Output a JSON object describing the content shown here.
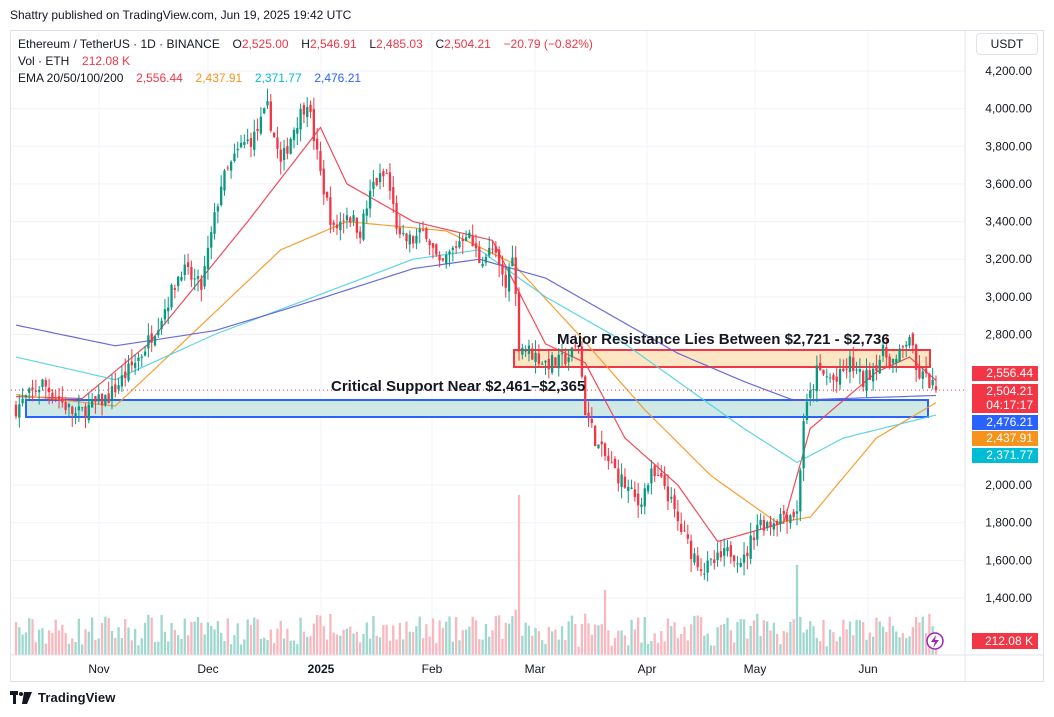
{
  "header": {
    "publisher": "Shattry published on TradingView.com, Jun 19, 2025 19:42 UTC"
  },
  "legend": {
    "symbol": "Ethereum / TetherUS · 1D · BINANCE",
    "open_label": "O",
    "open": "2,525.00",
    "high_label": "H",
    "high": "2,546.91",
    "low_label": "L",
    "low": "2,485.03",
    "close_label": "C",
    "close": "2,504.21",
    "change": "−20.79 (−0.82%)",
    "vol_label": "Vol · ETH",
    "vol_value": "212.08 K",
    "ema_label": "EMA 20/50/100/200",
    "ema20": "2,556.44",
    "ema50": "2,437.91",
    "ema100": "2,371.77",
    "ema200": "2,476.21"
  },
  "currency_button": "USDT",
  "footer": {
    "brand": "TradingView"
  },
  "colors": {
    "up": "#089981",
    "down": "#f23645",
    "ema20": "#f23645",
    "ema50": "#f7931a",
    "ema100": "#4dd0e1",
    "ema200": "#5b5bd6",
    "resistance_fill": "#fde6c4",
    "support_fill": "#cfe9e7"
  },
  "chart_data": {
    "type": "candlestick",
    "symbol": "ETH/USDT",
    "interval": "1D",
    "y_axis": {
      "ticks": [
        "4,200.00",
        "4,000.00",
        "3,800.00",
        "3,600.00",
        "3,400.00",
        "3,200.00",
        "3,000.00",
        "2,800.00",
        "2,000.00",
        "1,800.00",
        "1,600.00",
        "1,400.00"
      ],
      "tick_values": [
        4200,
        4000,
        3800,
        3600,
        3400,
        3200,
        3000,
        2800,
        2000,
        1800,
        1600,
        1400
      ],
      "ylim": [
        1230,
        4300
      ]
    },
    "x_axis": {
      "labels": [
        "Nov",
        "Dec",
        "2025",
        "Feb",
        "Mar",
        "Apr",
        "May",
        "Jun"
      ],
      "bold_label": "2025"
    },
    "price_tags": [
      {
        "text": "2,556.44",
        "value": 2556.44,
        "color": "#f23645"
      },
      {
        "text": "2,504.21",
        "sub": "04:17:17",
        "value": 2504.21,
        "color": "#f23645"
      },
      {
        "text": "2,476.21",
        "value": 2476.21,
        "color": "#2962ff"
      },
      {
        "text": "2,437.91",
        "value": 2437.91,
        "color": "#f7931a"
      },
      {
        "text": "2,371.77",
        "value": 2371.77,
        "color": "#00bcd4"
      }
    ],
    "volume_tag": "212.08 K",
    "annotations": [
      {
        "text": "Major Resistance Lies Between $2,721 - $2,736"
      },
      {
        "text": "Critical Support Near $2,461–$2,365"
      }
    ],
    "zones": {
      "resistance": {
        "low": 2721,
        "high": 2736
      },
      "support": {
        "low": 2365,
        "high": 2461
      }
    },
    "close_anchors": [
      [
        0,
        2410
      ],
      [
        8,
        2540
      ],
      [
        18,
        2370
      ],
      [
        28,
        2470
      ],
      [
        38,
        2700
      ],
      [
        44,
        2900
      ],
      [
        50,
        3150
      ],
      [
        56,
        3050
      ],
      [
        62,
        3600
      ],
      [
        68,
        3800
      ],
      [
        72,
        3850
      ],
      [
        76,
        4000
      ],
      [
        80,
        3700
      ],
      [
        84,
        3900
      ],
      [
        88,
        4050
      ],
      [
        92,
        3650
      ],
      [
        96,
        3350
      ],
      [
        100,
        3450
      ],
      [
        104,
        3350
      ],
      [
        108,
        3600
      ],
      [
        112,
        3650
      ],
      [
        116,
        3300
      ],
      [
        120,
        3300
      ],
      [
        124,
        3350
      ],
      [
        128,
        3150
      ],
      [
        132,
        3250
      ],
      [
        136,
        3350
      ],
      [
        140,
        3200
      ],
      [
        144,
        3250
      ],
      [
        148,
        3050
      ],
      [
        150,
        3250
      ],
      [
        152,
        2750
      ],
      [
        156,
        2700
      ],
      [
        160,
        2650
      ],
      [
        164,
        2650
      ],
      [
        168,
        2700
      ],
      [
        170,
        2750
      ],
      [
        172,
        2400
      ],
      [
        176,
        2200
      ],
      [
        180,
        2100
      ],
      [
        184,
        2000
      ],
      [
        188,
        1900
      ],
      [
        192,
        2050
      ],
      [
        196,
        2000
      ],
      [
        200,
        1800
      ],
      [
        204,
        1650
      ],
      [
        208,
        1550
      ],
      [
        212,
        1600
      ],
      [
        216,
        1650
      ],
      [
        220,
        1600
      ],
      [
        224,
        1800
      ],
      [
        228,
        1800
      ],
      [
        232,
        1850
      ],
      [
        236,
        1850
      ],
      [
        238,
        2350
      ],
      [
        242,
        2600
      ],
      [
        248,
        2550
      ],
      [
        252,
        2650
      ],
      [
        256,
        2550
      ],
      [
        262,
        2700
      ],
      [
        266,
        2650
      ],
      [
        270,
        2800
      ],
      [
        272,
        2600
      ],
      [
        276,
        2550
      ],
      [
        278,
        2504
      ]
    ],
    "ema_anchors": {
      "ema20": [
        [
          0,
          2470
        ],
        [
          20,
          2460
        ],
        [
          40,
          2750
        ],
        [
          70,
          3400
        ],
        [
          92,
          3900
        ],
        [
          100,
          3600
        ],
        [
          120,
          3400
        ],
        [
          144,
          3300
        ],
        [
          160,
          2750
        ],
        [
          172,
          2650
        ],
        [
          184,
          2250
        ],
        [
          200,
          2000
        ],
        [
          212,
          1700
        ],
        [
          232,
          1800
        ],
        [
          240,
          2300
        ],
        [
          260,
          2600
        ],
        [
          270,
          2680
        ],
        [
          278,
          2556
        ]
      ],
      "ema50": [
        [
          0,
          2480
        ],
        [
          30,
          2420
        ],
        [
          50,
          2750
        ],
        [
          80,
          3250
        ],
        [
          100,
          3400
        ],
        [
          130,
          3350
        ],
        [
          150,
          3180
        ],
        [
          170,
          2800
        ],
        [
          190,
          2400
        ],
        [
          210,
          2050
        ],
        [
          230,
          1800
        ],
        [
          240,
          1830
        ],
        [
          260,
          2250
        ],
        [
          278,
          2438
        ]
      ],
      "ema100": [
        [
          0,
          2680
        ],
        [
          30,
          2560
        ],
        [
          60,
          2800
        ],
        [
          90,
          3000
        ],
        [
          120,
          3200
        ],
        [
          140,
          3250
        ],
        [
          160,
          3000
        ],
        [
          180,
          2800
        ],
        [
          200,
          2550
        ],
        [
          220,
          2300
        ],
        [
          236,
          2120
        ],
        [
          250,
          2250
        ],
        [
          278,
          2372
        ]
      ],
      "ema200": [
        [
          0,
          2850
        ],
        [
          30,
          2740
        ],
        [
          60,
          2820
        ],
        [
          90,
          2980
        ],
        [
          120,
          3150
        ],
        [
          140,
          3200
        ],
        [
          160,
          3100
        ],
        [
          180,
          2900
        ],
        [
          200,
          2700
        ],
        [
          220,
          2550
        ],
        [
          235,
          2450
        ],
        [
          250,
          2460
        ],
        [
          278,
          2476
        ]
      ]
    }
  }
}
